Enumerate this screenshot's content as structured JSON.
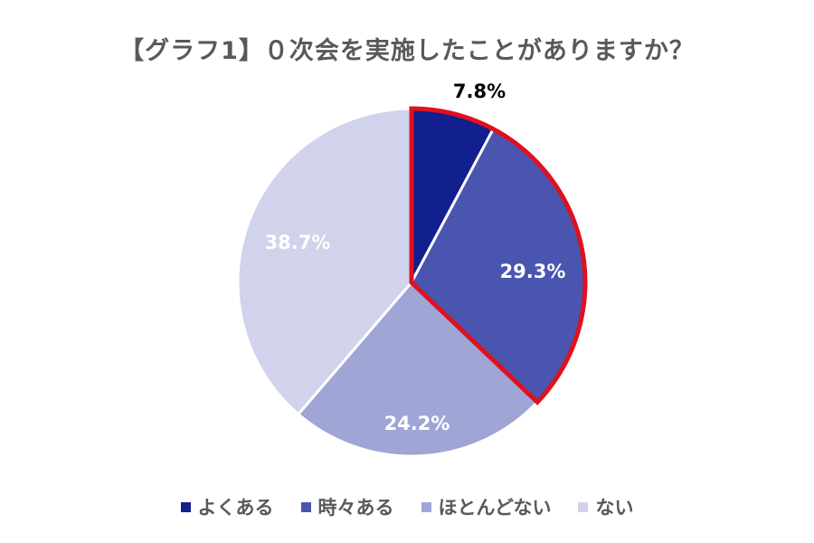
{
  "chart_data": {
    "type": "pie",
    "title": "【グラフ1】０次会を実施したことがありますか？",
    "categories": [
      "よくある",
      "時々ある",
      "ほとんどない",
      "ない"
    ],
    "values": [
      7.8,
      29.3,
      24.2,
      38.7
    ],
    "value_labels": [
      "7.8%",
      "29.3%",
      "24.2%",
      "38.7%"
    ],
    "colors": [
      "#121f8f",
      "#4a55b0",
      "#9fa5d5",
      "#d0d3eb"
    ],
    "label_colors": [
      "#000000",
      "#ffffff",
      "#ffffff",
      "#ffffff"
    ],
    "highlight": {
      "categories": [
        "よくある",
        "時々ある"
      ],
      "color": "#e0101e"
    },
    "start_angle_deg": 0,
    "direction": "clockwise",
    "legend_position": "bottom"
  }
}
